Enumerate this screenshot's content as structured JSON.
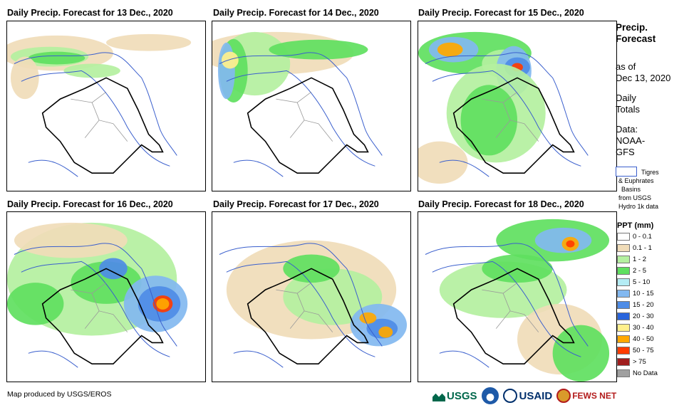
{
  "panels": [
    {
      "title": "Daily Precip. Forecast for 13 Dec., 2020",
      "day": 13
    },
    {
      "title": "Daily Precip. Forecast for 14 Dec., 2020",
      "day": 14
    },
    {
      "title": "Daily Precip. Forecast for 15 Dec., 2020",
      "day": 15
    },
    {
      "title": "Daily Precip. Forecast for 16 Dec., 2020",
      "day": 16
    },
    {
      "title": "Daily Precip. Forecast for 17 Dec., 2020",
      "day": 17
    },
    {
      "title": "Daily Precip. Forecast for 18 Dec., 2020",
      "day": 18
    }
  ],
  "sidebar": {
    "title_line1": "Precip.",
    "title_line2": "Forecast",
    "asof_line1": "as of",
    "asof_line2": "Dec 13, 2020",
    "totals_line1": "Daily",
    "totals_line2": "Totals",
    "data_line1": "Data:",
    "data_line2": "NOAA-",
    "data_line3": "GFS",
    "basin_line1": "Tigres",
    "basin_line2": "& Euphrates",
    "basin_line3": "Basins",
    "basin_line4": "from USGS",
    "basin_line5": "Hydro 1k data"
  },
  "legend": {
    "title": "PPT (mm)",
    "items": [
      {
        "label": "0 - 0.1",
        "color": "#ffffff"
      },
      {
        "label": "0.1 - 1",
        "color": "#f0dcb8"
      },
      {
        "label": "1 - 2",
        "color": "#b4f0a0"
      },
      {
        "label": "2 - 5",
        "color": "#5fe05f"
      },
      {
        "label": "5 - 10",
        "color": "#b4ecf4"
      },
      {
        "label": "10 - 15",
        "color": "#82b8f0"
      },
      {
        "label": "15 - 20",
        "color": "#4e8ce6"
      },
      {
        "label": "20 - 30",
        "color": "#2864dc"
      },
      {
        "label": "30 - 40",
        "color": "#fff08c"
      },
      {
        "label": "40 - 50",
        "color": "#ffa800"
      },
      {
        "label": "50 - 75",
        "color": "#ff3c00"
      },
      {
        "label": "> 75",
        "color": "#a01e1e"
      },
      {
        "label": "No Data",
        "color": "#a0a0a0"
      }
    ]
  },
  "footer": {
    "credit": "Map produced by USGS/EROS"
  },
  "logos": {
    "usgs": "USGS",
    "usaid": "USAID",
    "fews": "FEWS NET"
  }
}
